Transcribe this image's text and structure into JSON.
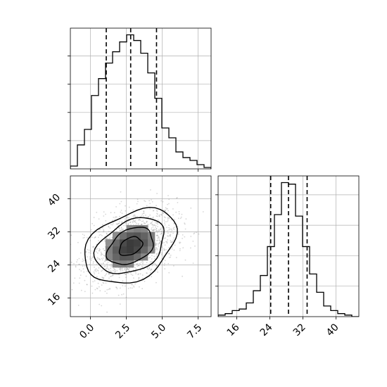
{
  "chart_data": {
    "type": "corner",
    "style": {
      "histogram_color": "#000000",
      "quantile_line_color": "#000000",
      "contour_color": "#000000",
      "scatter_color": "#8c8c8c",
      "grid": true
    },
    "quantiles": [
      0.16,
      0.5,
      0.84
    ],
    "params": [
      {
        "name": "",
        "quantile_values": [
          1.1,
          2.8,
          4.6
        ],
        "hist_range": [
          -1.4,
          8.4
        ],
        "axis_ticks": [
          0.0,
          2.5,
          5.0,
          7.5
        ],
        "axis_tick_labels": [
          "0.0",
          "2.5",
          "5.0",
          "7.5"
        ],
        "histogram": {
          "bin_edges": [
            -1.4,
            -0.91,
            -0.42,
            0.07,
            0.56,
            1.05,
            1.54,
            2.03,
            2.52,
            3.01,
            3.5,
            3.99,
            4.48,
            4.97,
            5.46,
            5.95,
            6.44,
            6.93,
            7.42,
            7.91,
            8.4
          ],
          "counts": [
            2,
            17,
            28,
            52,
            64,
            75,
            83,
            90,
            95,
            91,
            82,
            68,
            50,
            29,
            22,
            12,
            8,
            6,
            3,
            1
          ]
        }
      },
      {
        "name": "",
        "quantile_values": [
          24.2,
          28.5,
          33.0
        ],
        "hist_range": [
          11.5,
          45.5
        ],
        "axis_ticks": [
          16,
          24,
          32,
          40
        ],
        "axis_tick_labels": [
          "16",
          "24",
          "32",
          "40"
        ],
        "histogram": {
          "bin_edges": [
            11.5,
            13.2,
            14.9,
            16.6,
            18.3,
            20.0,
            21.7,
            23.4,
            25.1,
            26.8,
            28.5,
            30.2,
            31.9,
            33.6,
            35.3,
            37.0,
            38.7,
            40.4,
            42.1,
            43.8,
            45.5
          ],
          "counts": [
            1,
            2,
            4,
            5,
            9,
            17,
            27,
            46,
            67,
            88,
            87,
            66,
            46,
            28,
            16,
            7,
            4,
            2,
            1,
            0
          ]
        }
      }
    ],
    "joint_2d": {
      "x_param": 0,
      "y_param": 1,
      "center": [
        2.8,
        28.5
      ],
      "std": [
        1.6,
        4.5
      ],
      "correlation": 0.35,
      "contour_sigma_levels": [
        0.5,
        1.0,
        1.5,
        2.0
      ]
    }
  }
}
